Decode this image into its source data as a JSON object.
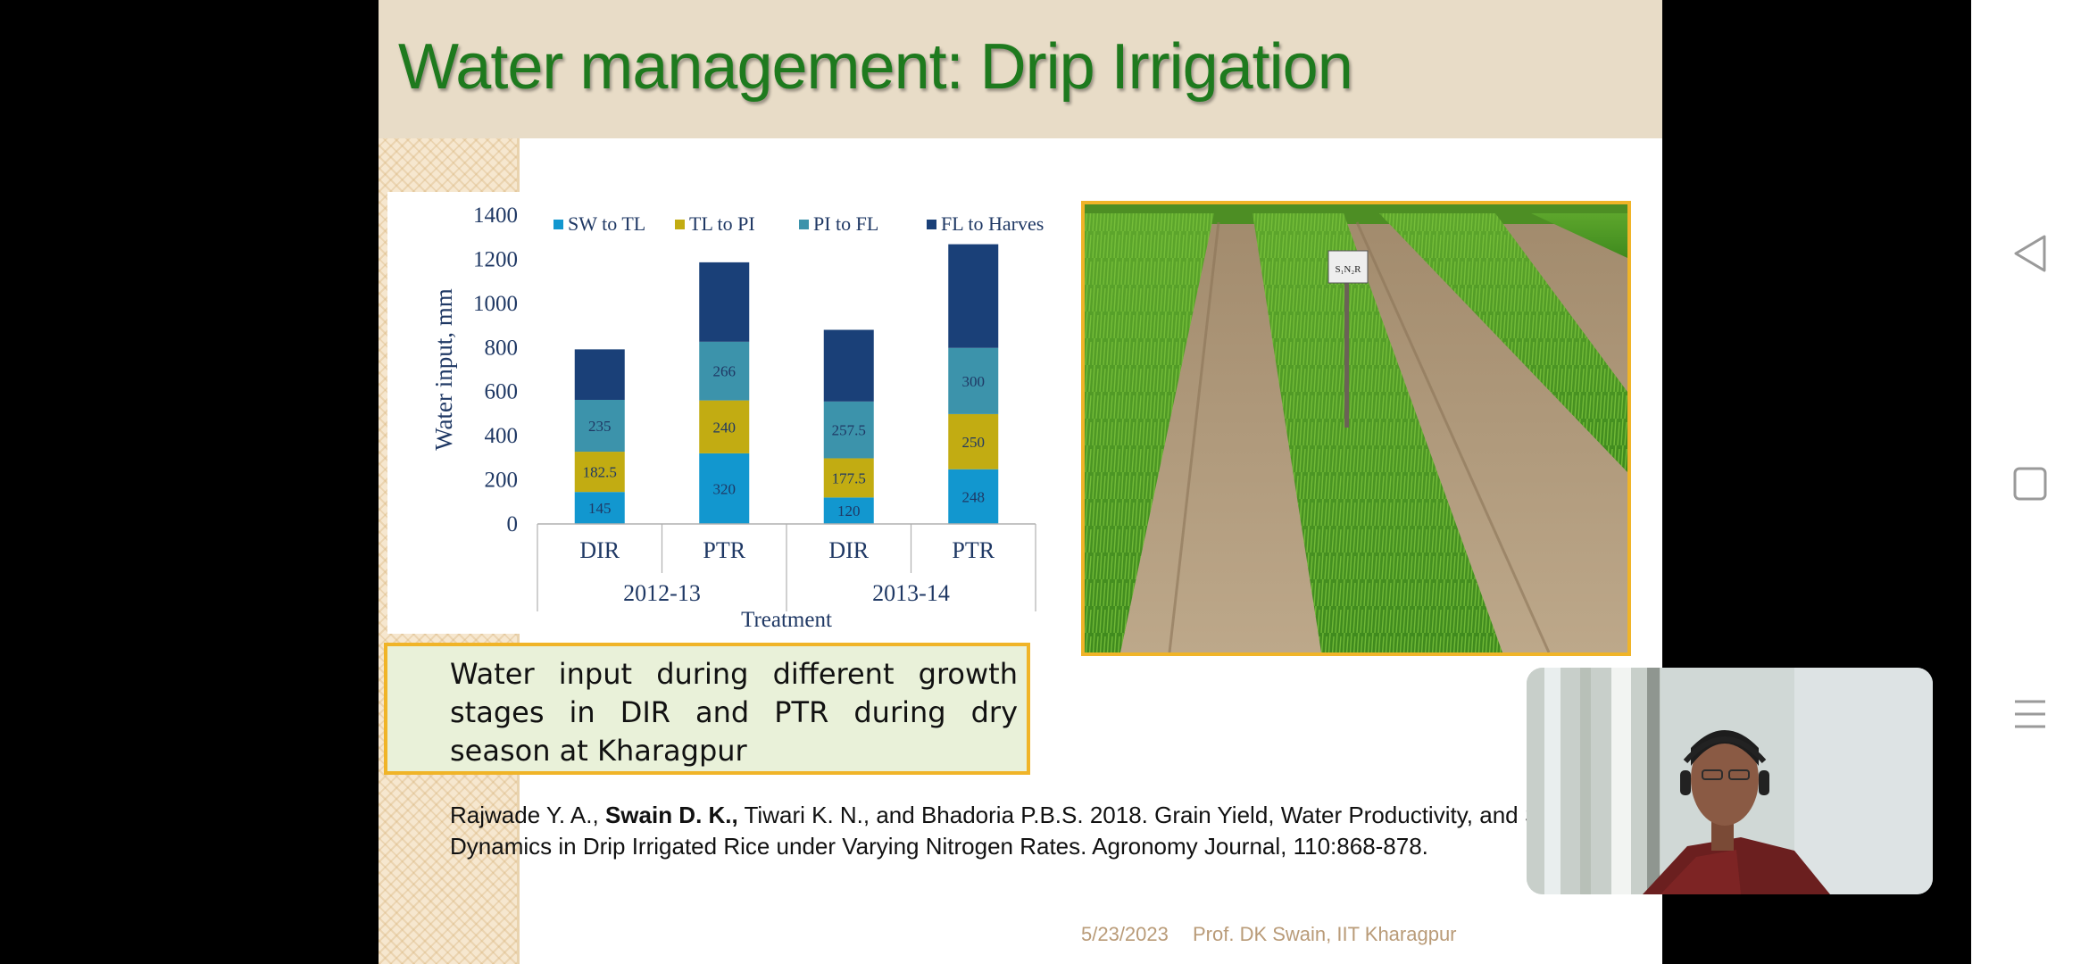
{
  "slide": {
    "title": "Water management: Drip Irrigation",
    "caption": "Water input during different growth stages in DIR and PTR during dry season at Kharagpur",
    "reference": {
      "authors_before": "Rajwade Y. A., ",
      "authors_bold": "Swain D. K.,",
      "authors_after": " Tiwari K. N., and Bhadoria P.B.S. 2018. Grain Yield, Water Productivity, and Soil Dynamics in Drip Irrigated Rice under Varying Nitrogen Rates. Agronomy Journal, 110:868-878."
    },
    "footer": {
      "date": "5/23/2023",
      "author": "Prof. DK Swain, IIT Kharagpur"
    },
    "photo": {
      "sign_text": "S₁N₂R"
    }
  },
  "chart_data": {
    "type": "bar",
    "stacked": true,
    "title": "",
    "ylabel": "Water input, mm",
    "xlabel": "Treatment",
    "ylim": [
      0,
      1400
    ],
    "yticks": [
      "0",
      "200",
      "400",
      "600",
      "800",
      "1000",
      "1200",
      "1400"
    ],
    "categories": [
      "DIR",
      "PTR",
      "DIR",
      "PTR"
    ],
    "groups": [
      {
        "label": "2012-13",
        "categories": [
          "DIR",
          "PTR"
        ]
      },
      {
        "label": "2013-14",
        "categories": [
          "DIR",
          "PTR"
        ]
      }
    ],
    "legend_position": "top",
    "series": [
      {
        "name": "SW to TL",
        "color": "#1297cf",
        "values": [
          145,
          320,
          120,
          248
        ],
        "labels": [
          "145",
          "320",
          "120",
          "248"
        ]
      },
      {
        "name": "TL to PI",
        "color": "#c2ac12",
        "values": [
          182.5,
          240,
          177.5,
          250
        ],
        "labels": [
          "182.5",
          "240",
          "177.5",
          "250"
        ]
      },
      {
        "name": "PI to FL",
        "color": "#3c93ab",
        "values": [
          235,
          266,
          257.5,
          300
        ],
        "labels": [
          "235",
          "266",
          "257.5",
          "300"
        ]
      },
      {
        "name": "FL to Harvest",
        "color": "#1a4078",
        "values": [
          229,
          360,
          325,
          470
        ],
        "labels": [
          "",
          "",
          "",
          ""
        ]
      }
    ]
  },
  "nav": {
    "back_icon": "back-triangle-icon",
    "home_icon": "home-square-icon",
    "recents_icon": "recents-lines-icon"
  },
  "colors": {
    "title_green": "#1e7a1e",
    "title_band": "#e8dcc7",
    "frame_orange": "#f0b428",
    "caption_fill": "#e9f1d9",
    "axis_text": "#1f3864",
    "footer_text": "#b99b78"
  }
}
